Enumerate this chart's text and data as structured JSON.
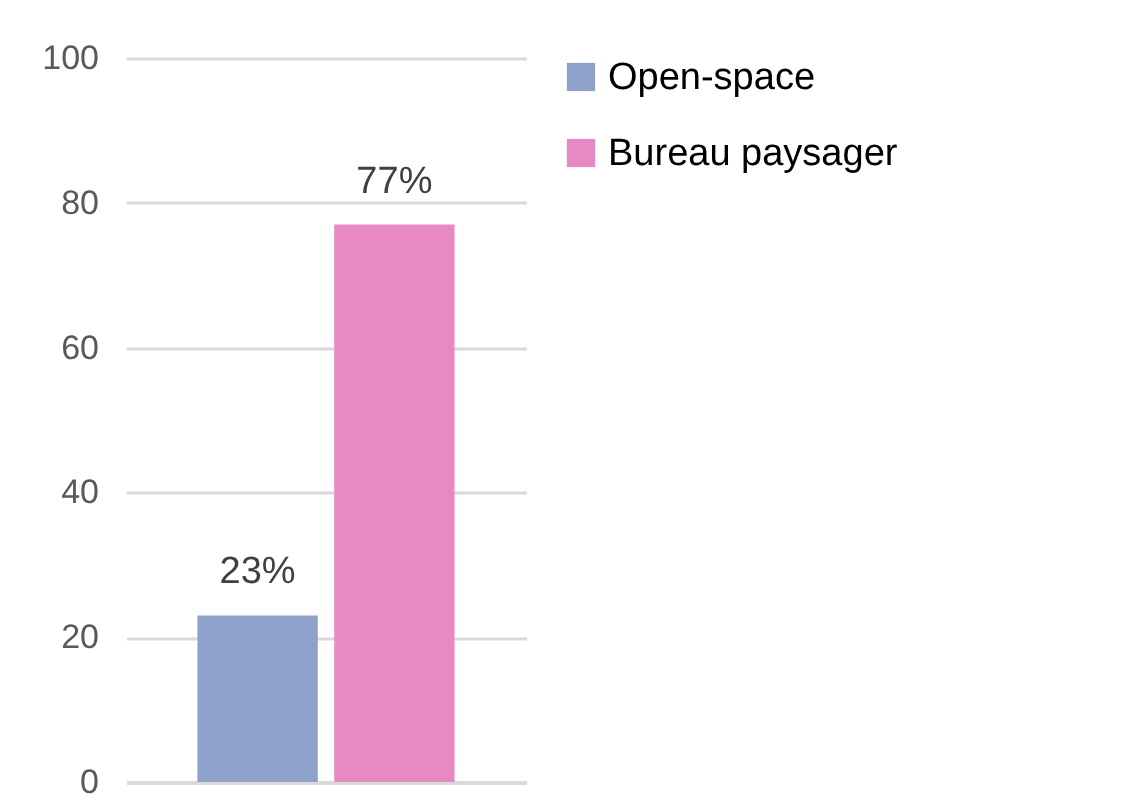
{
  "chart_data": {
    "type": "bar",
    "categories": [
      null
    ],
    "series": [
      {
        "name": "Open-space",
        "color": "#8ea1cb",
        "values": [
          23
        ],
        "value_labels": [
          "23%"
        ]
      },
      {
        "name": "Bureau paysager",
        "color": "#e78ac3",
        "values": [
          77
        ],
        "value_labels": [
          "77%"
        ]
      }
    ],
    "ylim": [
      0,
      100
    ],
    "yticks": [
      0,
      20,
      40,
      60,
      80,
      100
    ],
    "grid": "y",
    "legend": "right"
  }
}
